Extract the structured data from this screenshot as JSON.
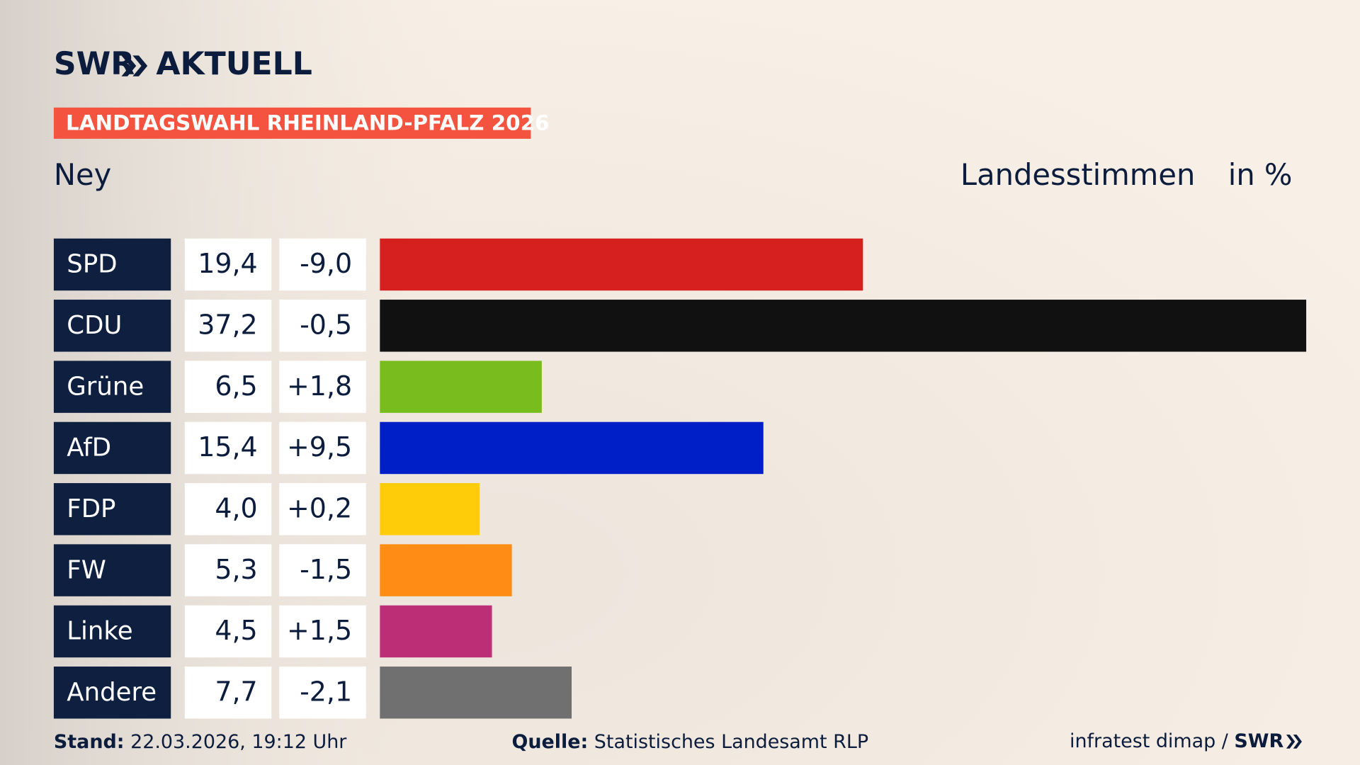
{
  "header": {
    "brand": "SWR",
    "brand_product": "AKTUELL",
    "tag": "LANDTAGSWAHL RHEINLAND-PFALZ 2026",
    "subtitle": "Ney",
    "measure": "Landesstimmen",
    "unit": "in %"
  },
  "chart_data": {
    "type": "bar",
    "categories": [
      "SPD",
      "CDU",
      "Grüne",
      "AfD",
      "FDP",
      "FW",
      "Linke",
      "Andere"
    ],
    "values": [
      19.4,
      37.2,
      6.5,
      15.4,
      4.0,
      5.3,
      4.5,
      7.7
    ],
    "value_labels": [
      "19,4",
      "37,2",
      "6,5",
      "15,4",
      "4,0",
      "5,3",
      "4,5",
      "7,7"
    ],
    "changes": [
      {
        "value": -9.0,
        "label": "-9,0"
      },
      {
        "value": -0.5,
        "label": "-0,5"
      },
      {
        "value": 1.8,
        "label": "+1,8"
      },
      {
        "value": 9.5,
        "label": "+9,5"
      },
      {
        "value": 0.2,
        "label": "+0,2"
      },
      {
        "value": -1.5,
        "label": "-1,5"
      },
      {
        "value": 1.5,
        "label": "+1,5"
      },
      {
        "value": -2.1,
        "label": "-2,1"
      }
    ],
    "colors": [
      "#d61f1f",
      "#111111",
      "#79bc1d",
      "#001fc6",
      "#ffcc0a",
      "#ff8c14",
      "#bc2e75",
      "#707070"
    ]
  },
  "footer": {
    "date_label": "Stand:",
    "date": "22.03.2026, 19:12 Uhr",
    "source_label": "Quelle:",
    "source": "Statistisches Landesamt RLP",
    "credit": "infratest dimap /",
    "credit_brand": "SWR"
  }
}
